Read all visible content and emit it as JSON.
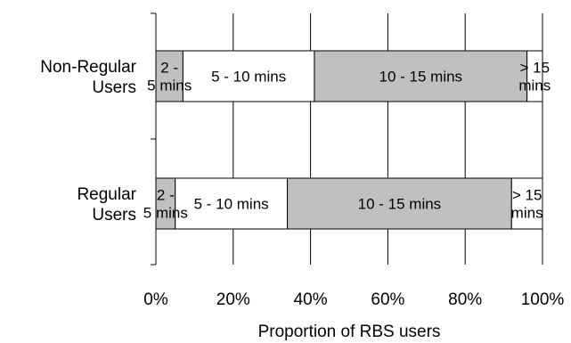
{
  "chart_data": {
    "type": "bar",
    "orientation": "horizontal",
    "stacked": true,
    "percent_stacked": true,
    "title": "",
    "xlabel": "Proportion of RBS users",
    "ylabel": "",
    "xlim": [
      0,
      100
    ],
    "x_ticks": [
      "0%",
      "20%",
      "40%",
      "60%",
      "80%",
      "100%"
    ],
    "grid": "vertical",
    "legend": "none",
    "categories": [
      {
        "label_lines": [
          "Non-Regular",
          "Users"
        ]
      },
      {
        "label_lines": [
          "Regular",
          "Users"
        ]
      }
    ],
    "series": [
      {
        "color": "#c0c0c0",
        "segment_label_lines": [
          "2 -",
          "5 mins"
        ],
        "values": [
          7,
          5
        ]
      },
      {
        "color": "#ffffff",
        "segment_label_lines": [
          "5 - 10 mins"
        ],
        "values": [
          34,
          29
        ]
      },
      {
        "color": "#c0c0c0",
        "segment_label_lines": [
          "10 - 15 mins"
        ],
        "values": [
          55,
          58
        ]
      },
      {
        "color": "#ffffff",
        "segment_label_lines": [
          "> 15",
          "mins"
        ],
        "values": [
          4,
          8
        ]
      }
    ]
  }
}
